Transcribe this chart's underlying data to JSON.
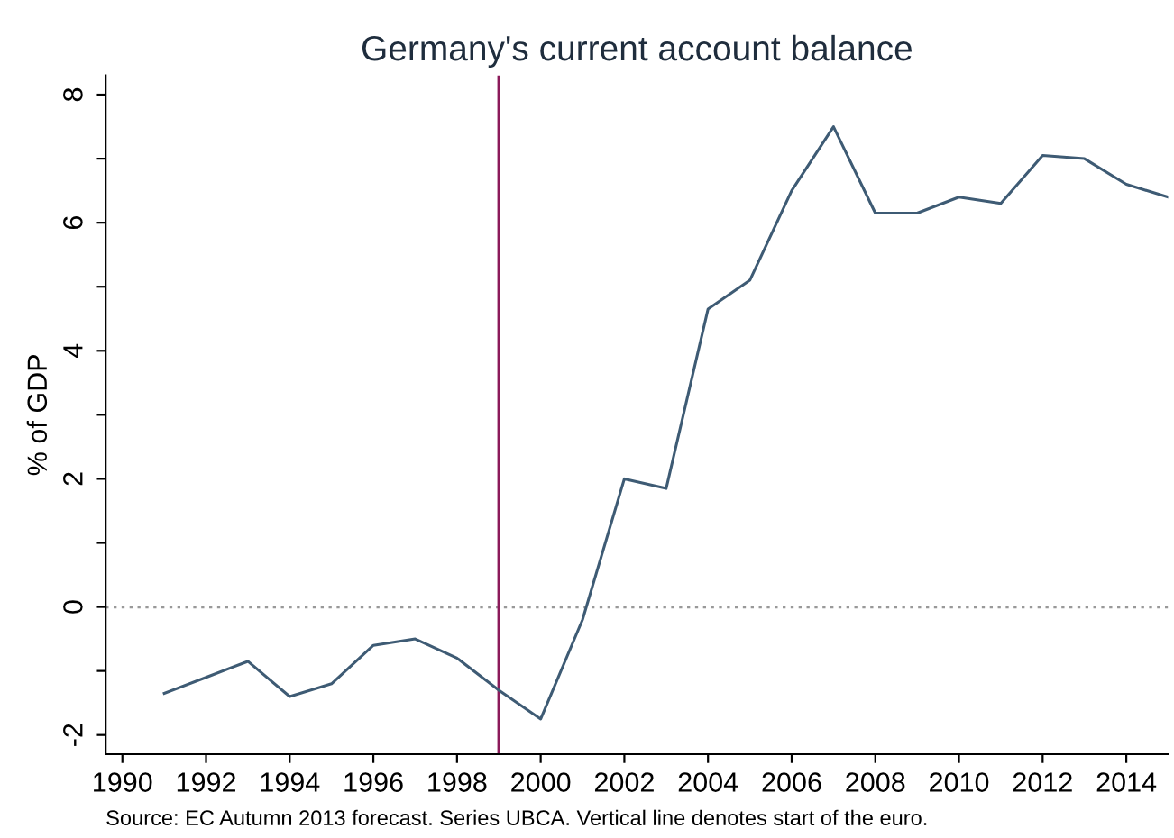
{
  "chart_data": {
    "type": "line",
    "title": "Germany's current account balance",
    "ylabel": "% of GDP",
    "x": [
      1991,
      1992,
      1993,
      1994,
      1995,
      1996,
      1997,
      1998,
      1999,
      2000,
      2001,
      2002,
      2003,
      2004,
      2005,
      2006,
      2007,
      2008,
      2009,
      2010,
      2011,
      2012,
      2013,
      2014,
      2015
    ],
    "series": [
      {
        "color": "#3e5b74",
        "values": [
          -1.35,
          -1.1,
          -0.85,
          -1.4,
          -1.2,
          -0.6,
          -0.5,
          -0.8,
          -1.3,
          -1.75,
          -0.2,
          2.0,
          1.85,
          4.65,
          5.1,
          6.5,
          7.5,
          6.15,
          6.15,
          6.4,
          6.3,
          7.05,
          7.0,
          6.6,
          6.4
        ]
      }
    ],
    "xlim": [
      1989.6,
      2015
    ],
    "ylim": [
      -2.3,
      8.3
    ],
    "xticks": [
      1990,
      1992,
      1994,
      1996,
      1998,
      2000,
      2002,
      2004,
      2006,
      2008,
      2010,
      2012,
      2014
    ],
    "yticks": [
      {
        "value": -2,
        "label": "-2"
      },
      {
        "value": -1,
        "label": null
      },
      0,
      {
        "value": 1,
        "label": null
      },
      2,
      {
        "value": 3,
        "label": null
      },
      4,
      {
        "value": 5,
        "label": null
      },
      6,
      {
        "value": 7,
        "label": null
      },
      8
    ],
    "ref_lines": [
      {
        "axis": "y",
        "value": 0,
        "label": null,
        "color": "#999999",
        "line_style": "dotted"
      },
      {
        "axis": "x",
        "value": 1999,
        "label": null,
        "color": "#8b1a5a",
        "line_style": "solid"
      }
    ],
    "grid": false,
    "legend": false,
    "marker": "none",
    "line_style": "solid",
    "annotations": [
      "Source: EC Autumn 2013 forecast. Series UBCA. Vertical line denotes start of the euro."
    ]
  }
}
